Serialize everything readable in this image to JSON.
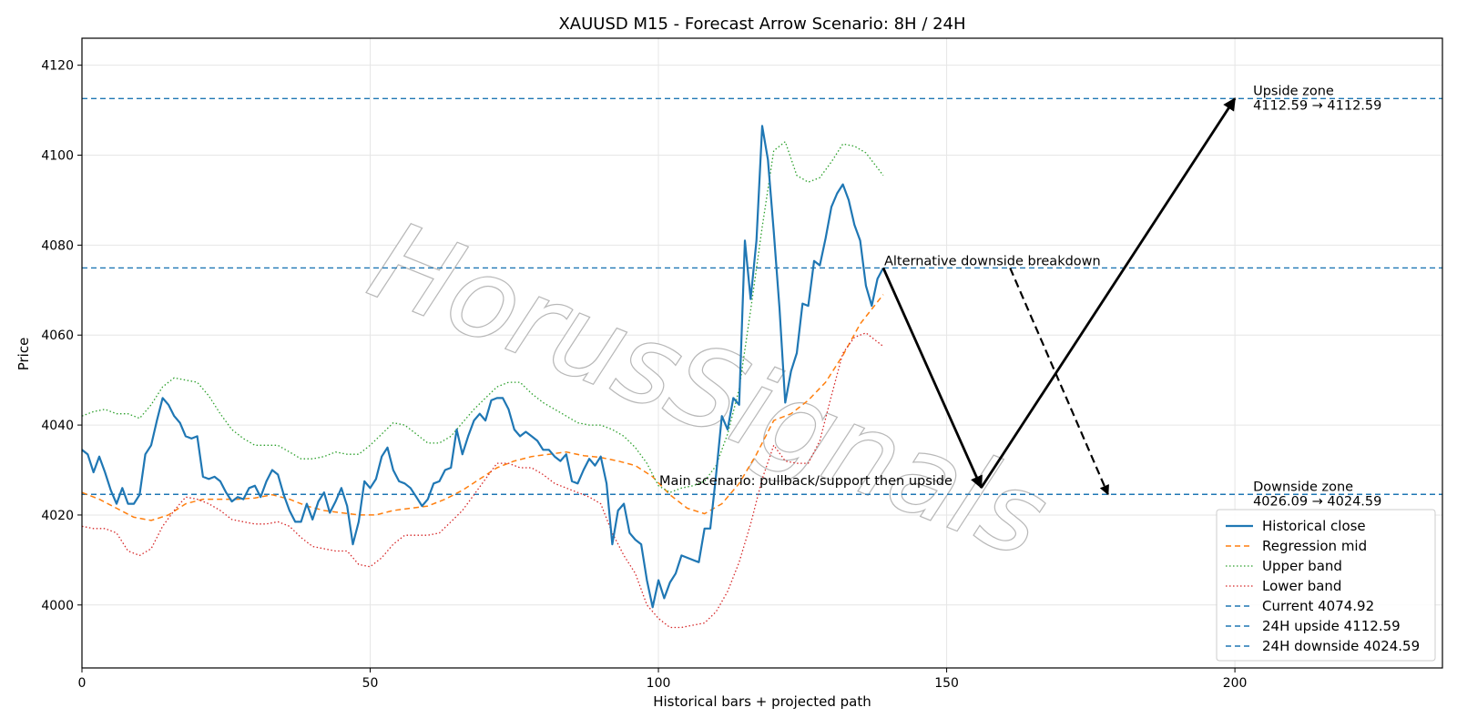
{
  "chart_data": {
    "type": "line",
    "title": "XAUUSD M15 - Forecast Arrow Scenario: 8H / 24H",
    "xlabel": "Historical bars + projected path",
    "ylabel": "Price",
    "xlim": [
      0,
      236
    ],
    "ylim": [
      3986,
      4126
    ],
    "x_ticks": [
      0,
      50,
      100,
      150,
      200
    ],
    "y_ticks": [
      4000,
      4020,
      4040,
      4060,
      4080,
      4100,
      4120
    ],
    "grid": true,
    "legend_position": "lower-right",
    "watermark": "HorusSignals",
    "series": [
      {
        "name": "Historical close",
        "style": "solid",
        "color": "#1f77b4",
        "x": [
          0,
          1,
          2,
          3,
          4,
          5,
          6,
          7,
          8,
          9,
          10,
          11,
          12,
          13,
          14,
          15,
          16,
          17,
          18,
          19,
          20,
          21,
          22,
          23,
          24,
          25,
          26,
          27,
          28,
          29,
          30,
          31,
          32,
          33,
          34,
          35,
          36,
          37,
          38,
          39,
          40,
          41,
          42,
          43,
          44,
          45,
          46,
          47,
          48,
          49,
          50,
          51,
          52,
          53,
          54,
          55,
          56,
          57,
          58,
          59,
          60,
          61,
          62,
          63,
          64,
          65,
          66,
          67,
          68,
          69,
          70,
          71,
          72,
          73,
          74,
          75,
          76,
          77,
          78,
          79,
          80,
          81,
          82,
          83,
          84,
          85,
          86,
          87,
          88,
          89,
          90,
          91,
          92,
          93,
          94,
          95,
          96,
          97,
          98,
          99,
          100,
          101,
          102,
          103,
          104,
          105,
          106,
          107,
          108,
          109,
          110,
          111,
          112,
          113,
          114,
          115,
          116,
          117,
          118,
          119,
          120,
          121,
          122,
          123,
          124,
          125,
          126,
          127,
          128,
          129,
          130,
          131,
          132,
          133,
          134,
          135,
          136,
          137,
          138,
          139
        ],
        "values": [
          4034.5,
          4033.5,
          4029.5,
          4033,
          4029.5,
          4025.5,
          4022.5,
          4026,
          4022.5,
          4022.5,
          4024.5,
          4033.5,
          4035.5,
          4041,
          4046,
          4044.5,
          4042,
          4040.5,
          4037.5,
          4037,
          4037.5,
          4028.5,
          4028,
          4028.5,
          4027.5,
          4025,
          4023,
          4024,
          4023.5,
          4026,
          4026.5,
          4024,
          4027.5,
          4030,
          4029,
          4024.5,
          4021,
          4018.5,
          4018.5,
          4022.5,
          4019,
          4023,
          4025,
          4020.5,
          4023,
          4026,
          4022,
          4013.5,
          4018.5,
          4027.5,
          4026,
          4028,
          4033,
          4035,
          4030,
          4027.5,
          4027,
          4026,
          4024,
          4022,
          4023.5,
          4027,
          4027.5,
          4030,
          4030.5,
          4039,
          4033.5,
          4037.5,
          4041,
          4042.5,
          4041,
          4045.5,
          4046,
          4046,
          4043.5,
          4039,
          4037.5,
          4038.5,
          4037.5,
          4036.5,
          4034.5,
          4034.5,
          4033,
          4032,
          4033.5,
          4027.5,
          4027,
          4030,
          4032.5,
          4031,
          4033,
          4027,
          4013.5,
          4021,
          4022.5,
          4016,
          4014.5,
          4013.5,
          4005.5,
          3999.5,
          4005.5,
          4001.5,
          4005,
          4007,
          4011,
          4010.5,
          4010,
          4009.5,
          4017,
          4017,
          4029,
          4042,
          4039,
          4046,
          4044.5,
          4081,
          4068,
          4081,
          4106.5,
          4099,
          4083,
          4066,
          4045,
          4052,
          4056,
          4067,
          4066.5,
          4076.5,
          4075.5,
          4081.5,
          4088.5,
          4091.5,
          4093.5,
          4090,
          4084.5,
          4081,
          4071,
          4066.5,
          4072.5,
          4074.92
        ]
      },
      {
        "name": "Regression mid",
        "style": "dashed",
        "color": "#ff7f0e",
        "x": [
          0,
          3,
          6,
          9,
          12,
          15,
          18,
          21,
          24,
          27,
          30,
          33,
          36,
          39,
          42,
          45,
          48,
          51,
          54,
          57,
          60,
          63,
          66,
          69,
          72,
          75,
          78,
          81,
          84,
          87,
          90,
          93,
          96,
          99,
          102,
          105,
          108,
          111,
          114,
          117,
          120,
          123,
          126,
          129,
          132,
          135,
          139
        ],
        "values": [
          4025,
          4023.5,
          4021.5,
          4019.5,
          4018.8,
          4020,
          4022.5,
          4023.5,
          4023.5,
          4023.5,
          4023.8,
          4024.5,
          4023.5,
          4022,
          4021,
          4020.5,
          4020,
          4020,
          4021,
          4021.5,
          4022,
          4023.5,
          4025.5,
          4028,
          4030.5,
          4032,
          4033,
          4033.5,
          4034,
          4033.2,
          4032.8,
          4032,
          4031,
          4028.5,
          4024.5,
          4021.5,
          4020.3,
          4022.5,
          4027,
          4033.5,
          4041,
          4042.5,
          4045.5,
          4049.5,
          4055.5,
          4062.5,
          4069
        ]
      },
      {
        "name": "Upper band",
        "style": "dotted",
        "color": "#2ca02c",
        "x": [
          0,
          2,
          4,
          6,
          8,
          10,
          12,
          14,
          16,
          18,
          20,
          22,
          24,
          26,
          28,
          30,
          32,
          34,
          36,
          38,
          40,
          42,
          44,
          46,
          48,
          50,
          52,
          54,
          56,
          58,
          60,
          62,
          64,
          66,
          68,
          70,
          72,
          74,
          76,
          78,
          80,
          82,
          84,
          86,
          88,
          90,
          92,
          94,
          96,
          98,
          100,
          102,
          104,
          106,
          108,
          110,
          112,
          114,
          116,
          118,
          120,
          122,
          124,
          126,
          128,
          130,
          132,
          134,
          136,
          139
        ],
        "values": [
          4042,
          4043,
          4043.5,
          4042.5,
          4042.5,
          4041.5,
          4044.5,
          4048.5,
          4050.5,
          4050,
          4049.5,
          4046.5,
          4042.5,
          4039,
          4037,
          4035.5,
          4035.5,
          4035.5,
          4034,
          4032.5,
          4032.5,
          4033,
          4034,
          4033.5,
          4033.5,
          4035.5,
          4038,
          4040.5,
          4040,
          4038,
          4036,
          4036,
          4037.5,
          4040.5,
          4043.5,
          4046,
          4048.5,
          4049.5,
          4049.5,
          4047,
          4045,
          4043.5,
          4042,
          4040.5,
          4040,
          4040,
          4039,
          4037.5,
          4035,
          4031.5,
          4026.5,
          4025,
          4026,
          4026.5,
          4027.5,
          4031,
          4038,
          4048,
          4065.5,
          4084,
          4101,
          4103,
          4095.5,
          4094,
          4095,
          4098.5,
          4102.5,
          4102,
          4100.5,
          4095.5
        ]
      },
      {
        "name": "Lower band",
        "style": "dotted",
        "color": "#d62728",
        "x": [
          0,
          2,
          4,
          6,
          8,
          10,
          12,
          14,
          16,
          18,
          20,
          22,
          24,
          26,
          28,
          30,
          32,
          34,
          36,
          38,
          40,
          42,
          44,
          46,
          48,
          50,
          52,
          54,
          56,
          58,
          60,
          62,
          64,
          66,
          68,
          70,
          72,
          74,
          76,
          78,
          80,
          82,
          84,
          86,
          88,
          90,
          92,
          94,
          96,
          98,
          100,
          102,
          104,
          106,
          108,
          110,
          112,
          114,
          116,
          118,
          120,
          122,
          124,
          126,
          128,
          130,
          132,
          134,
          136,
          139
        ],
        "values": [
          4017.5,
          4017,
          4017,
          4016,
          4012,
          4011,
          4012.5,
          4017.5,
          4021,
          4024,
          4023.5,
          4022.5,
          4021,
          4019,
          4018.5,
          4018,
          4018,
          4018.5,
          4017.5,
          4015,
          4013,
          4012.5,
          4012,
          4012,
          4009,
          4008.5,
          4010.5,
          4013.5,
          4015.5,
          4015.5,
          4015.5,
          4016,
          4018.5,
          4021,
          4024.5,
          4028,
          4031.5,
          4031.5,
          4030.5,
          4030.5,
          4029,
          4027,
          4026,
          4025,
          4024,
          4022.5,
          4016,
          4011,
          4007,
          4000,
          3997,
          3995,
          3995,
          3995.5,
          3996,
          3998.5,
          4003,
          4009.5,
          4018,
          4028,
          4035.5,
          4032,
          4031.5,
          4031.5,
          4036.5,
          4046.5,
          4056,
          4059.5,
          4060.5,
          4057.5
        ]
      }
    ],
    "reference_lines": [
      {
        "name": "Current 4074.92",
        "y": 4074.92,
        "color": "#1f77b4"
      },
      {
        "name": "24H upside 4112.59",
        "y": 4112.59,
        "color": "#1f77b4"
      },
      {
        "name": "24H downside 4024.59",
        "y": 4024.59,
        "color": "#1f77b4"
      }
    ],
    "arrows": [
      {
        "from": [
          139,
          4074.92
        ],
        "to": [
          156,
          4026.09
        ],
        "style": "solid",
        "color": "#000000"
      },
      {
        "from": [
          156,
          4026.09
        ],
        "to": [
          200,
          4112.59
        ],
        "style": "solid",
        "color": "#000000"
      },
      {
        "from": [
          161,
          4074.92
        ],
        "to": [
          178,
          4024.59
        ],
        "style": "dashed",
        "color": "#000000"
      }
    ],
    "annotations": [
      {
        "text": "Alternative downside breakdown",
        "x": 139,
        "y": 4074.92
      },
      {
        "text": "Main scenario: pullback/support then upside",
        "x": 100,
        "y": 4026.09
      },
      {
        "text": "Upside zone",
        "x": 203,
        "y": 4112.59,
        "line": 1
      },
      {
        "text": "4112.59 → 4112.59",
        "x": 203,
        "y": 4112.59,
        "line": 2
      },
      {
        "text": "Downside zone",
        "x": 203,
        "y": 4024.59,
        "line": 1
      },
      {
        "text": "4026.09 → 4024.59",
        "x": 203,
        "y": 4024.59,
        "line": 2
      }
    ]
  }
}
